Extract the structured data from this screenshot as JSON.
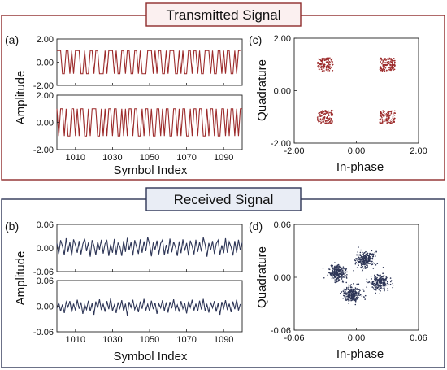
{
  "sections": [
    {
      "title": "Transmitted Signal",
      "border_color": "#8e2b2b",
      "title_bg": "#fbf0f0"
    },
    {
      "title": "Received Signal",
      "border_color": "#2d3556",
      "title_bg": "#e9edf5"
    }
  ],
  "chart_data": [
    {
      "panel_label": "(a)",
      "type": "line",
      "xlabel": "Symbol Index",
      "ylabel": "Amplitude",
      "xlim": [
        1000,
        1100
      ],
      "x_ticks": [
        1010,
        1030,
        1050,
        1070,
        1090
      ],
      "color": "#9c2a2a",
      "subplots": [
        {
          "ylim": [
            -2,
            2
          ],
          "y_ticks": [
            "2.00",
            "0.00",
            "-2.00"
          ],
          "x_start": 1000,
          "values": [
            1,
            1,
            1,
            -1,
            -1,
            1,
            1,
            -1,
            1,
            -1,
            1,
            1,
            1,
            -1,
            -1,
            1,
            -1,
            -1,
            1,
            1,
            -1,
            1,
            1,
            -1,
            -1,
            -1,
            1,
            -1,
            1,
            1,
            1,
            -1,
            1,
            -1,
            -1,
            1,
            1,
            -1,
            1,
            1,
            -1,
            -1,
            1,
            1,
            -1,
            1,
            -1,
            -1,
            -1,
            1,
            1,
            1,
            -1,
            1,
            -1,
            1,
            1,
            -1,
            -1,
            1,
            -1,
            1,
            1,
            1,
            -1,
            -1,
            1,
            -1,
            1,
            -1,
            -1,
            1,
            1,
            -1,
            1,
            1,
            -1,
            1,
            -1,
            -1,
            1,
            1,
            1,
            -1,
            1,
            -1,
            -1,
            1,
            1,
            -1,
            1,
            -1,
            1,
            1,
            -1,
            -1,
            1,
            -1,
            1,
            1
          ]
        },
        {
          "ylim": [
            -2,
            2
          ],
          "y_ticks": [
            "2.00",
            "0.00",
            "-2.00"
          ],
          "x_start": 1000,
          "values": [
            1,
            -1,
            1,
            1,
            -1,
            1,
            -1,
            -1,
            1,
            1,
            -1,
            1,
            -1,
            1,
            1,
            -1,
            -1,
            1,
            -1,
            1,
            1,
            1,
            -1,
            -1,
            1,
            -1,
            1,
            -1,
            1,
            1,
            -1,
            1,
            1,
            -1,
            -1,
            1,
            -1,
            1,
            -1,
            1,
            1,
            -1,
            1,
            1,
            -1,
            -1,
            1,
            -1,
            1,
            1,
            -1,
            1,
            -1,
            -1,
            1,
            1,
            -1,
            1,
            -1,
            1,
            1,
            -1,
            -1,
            1,
            1,
            -1,
            1,
            -1,
            1,
            1,
            -1,
            -1,
            1,
            -1,
            1,
            1,
            -1,
            1,
            1,
            -1,
            -1,
            1,
            -1,
            1,
            1,
            -1,
            1,
            -1,
            -1,
            1,
            1,
            -1,
            1,
            -1,
            1,
            1,
            -1,
            1,
            -1,
            1,
            1
          ]
        }
      ]
    },
    {
      "panel_label": "(c)",
      "type": "scatter",
      "xlabel": "In-phase",
      "ylabel": "Quadrature",
      "xlim": [
        -2,
        2
      ],
      "ylim": [
        -2,
        2
      ],
      "x_ticks": [
        "-2.00",
        "0.00",
        "2.00"
      ],
      "y_ticks": [
        "2.00",
        "0.00",
        "-2.00"
      ],
      "color": "#9c2a2a",
      "clusters": [
        {
          "center": [
            -1,
            1
          ],
          "spread": 0.25,
          "count": 120
        },
        {
          "center": [
            1,
            1
          ],
          "spread": 0.25,
          "count": 120
        },
        {
          "center": [
            -1,
            -1
          ],
          "spread": 0.25,
          "count": 120
        },
        {
          "center": [
            1,
            -1
          ],
          "spread": 0.25,
          "count": 120
        }
      ]
    },
    {
      "panel_label": "(b)",
      "type": "line",
      "xlabel": "Symbol Index",
      "ylabel": "Amplitude",
      "xlim": [
        1000,
        1100
      ],
      "x_ticks": [
        1010,
        1030,
        1050,
        1070,
        1090
      ],
      "color": "#2d3556",
      "subplots": [
        {
          "ylim": [
            -0.06,
            0.06
          ],
          "y_ticks": [
            "0.06",
            "0.00",
            "-0.06"
          ],
          "x_start": 1000,
          "values": [
            0.012,
            -0.015,
            0.02,
            0.005,
            -0.018,
            0.025,
            -0.01,
            0.015,
            -0.02,
            0.022,
            0.008,
            -0.012,
            0.018,
            -0.016,
            0.01,
            0.024,
            -0.008,
            0.014,
            -0.022,
            0.02,
            0.006,
            -0.018,
            0.016,
            -0.004,
            0.021,
            -0.014,
            0.011,
            0.019,
            -0.02,
            0.009,
            -0.012,
            0.023,
            -0.017,
            0.013,
            0.004,
            -0.02,
            0.018,
            -0.01,
            0.026,
            -0.006,
            0.015,
            -0.019,
            0.02,
            0.003,
            -0.015,
            0.022,
            -0.012,
            0.017,
            -0.008,
            0.028,
            0.01,
            -0.021,
            0.014,
            -0.004,
            0.019,
            -0.016,
            0.012,
            0.021,
            -0.018,
            0.008,
            -0.014,
            0.024,
            -0.011,
            0.016,
            0.002,
            -0.02,
            0.017,
            -0.013,
            0.022,
            -0.007,
            0.013,
            -0.019,
            0.019,
            0.005,
            -0.016,
            0.021,
            -0.01,
            0.015,
            -0.009,
            0.027,
            0.009,
            -0.022,
            0.013,
            -0.005,
            0.018,
            -0.015,
            0.011,
            0.02,
            -0.017,
            0.007,
            -0.013,
            0.025,
            -0.012,
            0.016,
            0.003,
            -0.019,
            0.018,
            -0.012,
            0.021,
            -0.006,
            0.014
          ]
        },
        {
          "ylim": [
            -0.06,
            0.06
          ],
          "y_ticks": [
            "0.06",
            "0.00",
            "-0.06"
          ],
          "x_start": 1000,
          "values": [
            -0.005,
            0.008,
            -0.012,
            0.004,
            -0.016,
            0.01,
            -0.002,
            0.012,
            -0.014,
            0.006,
            -0.01,
            0.015,
            -0.006,
            0.009,
            -0.018,
            0.004,
            -0.008,
            0.013,
            -0.012,
            0.007,
            -0.02,
            0.011,
            -0.004,
            0.016,
            -0.009,
            0.005,
            -0.013,
            0.012,
            -0.007,
            0.018,
            -0.011,
            0.003,
            -0.016,
            0.009,
            -0.005,
            0.014,
            -0.012,
            0.006,
            -0.022,
            0.01,
            -0.003,
            0.015,
            -0.008,
            0.004,
            -0.014,
            0.011,
            -0.006,
            0.017,
            -0.01,
            0.005,
            -0.012,
            0.013,
            -0.007,
            0.008,
            -0.018,
            0.006,
            -0.004,
            0.014,
            -0.011,
            0.009,
            -0.015,
            0.01,
            -0.005,
            0.016,
            -0.009,
            0.003,
            -0.013,
            0.012,
            -0.006,
            0.007,
            -0.017,
            0.011,
            -0.003,
            0.015,
            -0.01,
            0.006,
            -0.012,
            0.013,
            -0.008,
            0.017,
            -0.011,
            0.004,
            -0.015,
            0.009,
            -0.004,
            0.012,
            -0.013,
            0.007,
            -0.02,
            0.01,
            -0.005,
            0.014,
            -0.009,
            0.006,
            -0.014,
            0.011,
            -0.007,
            0.015,
            -0.01,
            0.005
          ]
        }
      ]
    },
    {
      "panel_label": "(d)",
      "type": "scatter",
      "xlabel": "In-phase",
      "ylabel": "Quadrature",
      "xlim": [
        -0.06,
        0.06
      ],
      "ylim": [
        -0.06,
        0.06
      ],
      "x_ticks": [
        "-0.06",
        "0.00",
        "0.06"
      ],
      "y_ticks": [
        "0.06",
        "0.00",
        "-0.06"
      ],
      "color": "#2d3556",
      "clusters": [
        {
          "center": [
            -0.018,
            0.005
          ],
          "spread": 0.0045,
          "count": 220
        },
        {
          "center": [
            0.008,
            0.02
          ],
          "spread": 0.0045,
          "count": 220
        },
        {
          "center": [
            -0.004,
            -0.019
          ],
          "spread": 0.0045,
          "count": 220
        },
        {
          "center": [
            0.022,
            -0.006
          ],
          "spread": 0.0045,
          "count": 220
        }
      ]
    }
  ]
}
